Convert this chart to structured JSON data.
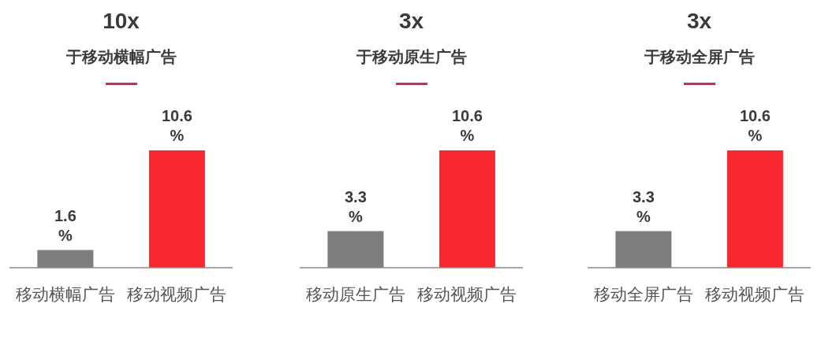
{
  "chart_data": [
    {
      "type": "bar",
      "title": "10x",
      "subtitle": "于移动横幅广告",
      "categories": [
        "移动横幅广告",
        "移动视频广告"
      ],
      "values": [
        1.6,
        10.6
      ],
      "colors": [
        "#7f7d80",
        "#f8292e"
      ],
      "value_labels": [
        "1.6 %",
        "10.6 %"
      ],
      "tick_labels": "x"
    },
    {
      "type": "bar",
      "title": "3x",
      "subtitle": "于移动原生广告",
      "categories": [
        "移动原生广告",
        "移动视频广告"
      ],
      "values": [
        3.3,
        10.6
      ],
      "colors": [
        "#7f7d80",
        "#f8292e"
      ],
      "value_labels": [
        "3.3 %",
        "10.6 %"
      ],
      "tick_labels": "x"
    },
    {
      "type": "bar",
      "title": "3x",
      "subtitle": "于移动全屏广告",
      "categories": [
        "移动全屏广告",
        "移动视频广告"
      ],
      "values": [
        3.3,
        10.6
      ],
      "colors": [
        "#7f7d80",
        "#f8292e"
      ],
      "value_labels": [
        "3.3 %",
        "10.6 %"
      ],
      "tick_labels": "x"
    }
  ]
}
